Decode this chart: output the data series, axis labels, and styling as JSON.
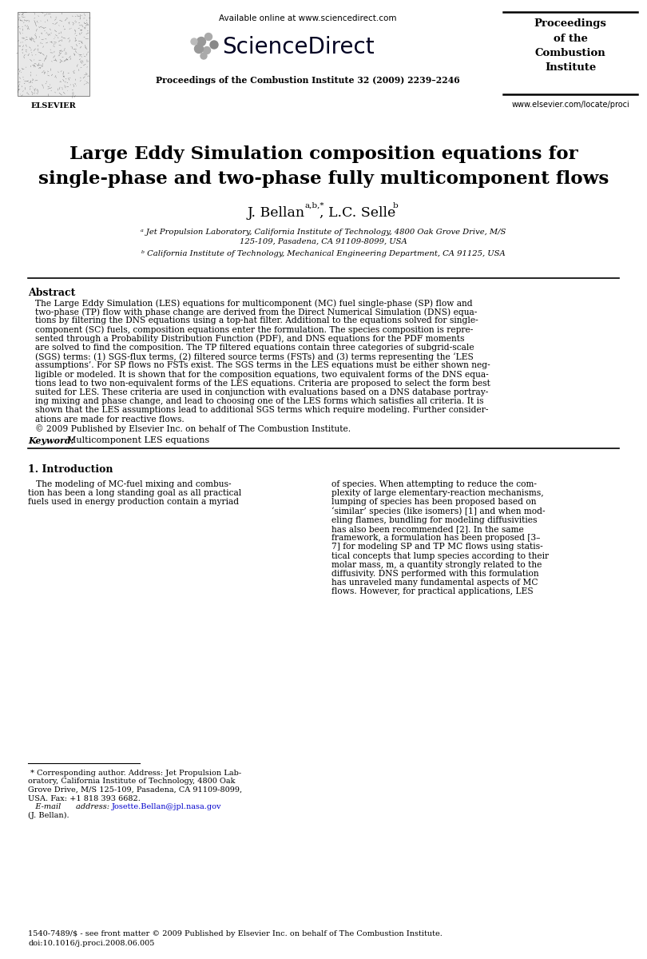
{
  "bg_color": "#ffffff",
  "header_available_online": "Available online at www.sciencedirect.com",
  "header_sciencedirect": "ScienceDirect",
  "header_journal": "Proceedings of the Combustion Institute 32 (2009) 2239–2246",
  "header_proceedings_title": "Proceedings\nof the\nCombustion\nInstitute",
  "header_website": "www.elsevier.com/locate/proci",
  "paper_title_line1": "Large Eddy Simulation composition equations for",
  "paper_title_line2": "single-phase and two-phase fully multicomponent flows",
  "affil_a": "ᵃ Jet Propulsion Laboratory, California Institute of Technology, 4800 Oak Grove Drive, M/S",
  "affil_a2": "125-109, Pasadena, CA 91109-8099, USA",
  "affil_b": "ᵇ California Institute of Technology, Mechanical Engineering Department, CA 91125, USA",
  "abstract_title": "Abstract",
  "abstract_lines": [
    "The Large Eddy Simulation (LES) equations for multicomponent (MC) fuel single-phase (SP) flow and",
    "two-phase (TP) flow with phase change are derived from the Direct Numerical Simulation (DNS) equa-",
    "tions by filtering the DNS equations using a top-hat filter. Additional to the equations solved for single-",
    "component (SC) fuels, composition equations enter the formulation. The species composition is repre-",
    "sented through a Probability Distribution Function (PDF), and DNS equations for the PDF moments",
    "are solved to find the composition. The TP filtered equations contain three categories of subgrid-scale",
    "(SGS) terms: (1) SGS-flux terms, (2) filtered source terms (FSTs) and (3) terms representing the ‘LES",
    "assumptions’. For SP flows no FSTs exist. The SGS terms in the LES equations must be either shown neg-",
    "ligible or modeled. It is shown that for the composition equations, two equivalent forms of the DNS equa-",
    "tions lead to two non-equivalent forms of the LES equations. Criteria are proposed to select the form best",
    "suited for LES. These criteria are used in conjunction with evaluations based on a DNS database portray-",
    "ing mixing and phase change, and lead to choosing one of the LES forms which satisfies all criteria. It is",
    "shown that the LES assumptions lead to additional SGS terms which require modeling. Further consider-",
    "ations are made for reactive flows.",
    "© 2009 Published by Elsevier Inc. on behalf of The Combustion Institute."
  ],
  "keyword_label": "Keyword:",
  "keyword_text": "Multicomponent LES equations",
  "section1_title": "1. Introduction",
  "intro_col1_lines": [
    "   The modeling of MC-fuel mixing and combus-",
    "tion has been a long standing goal as all practical",
    "fuels used in energy production contain a myriad"
  ],
  "intro_col2_lines": [
    "of species. When attempting to reduce the com-",
    "plexity of large elementary-reaction mechanisms,",
    "lumping of species has been proposed based on",
    "‘similar’ species (like isomers) [1] and when mod-",
    "eling flames, bundling for modeling diffusivities",
    "has also been recommended [2]. In the same",
    "framework, a formulation has been proposed [3–",
    "7] for modeling SP and TP MC flows using statis-",
    "tical concepts that lump species according to their",
    "molar mass, m, a quantity strongly related to the",
    "diffusivity. DNS performed with this formulation",
    "has unraveled many fundamental aspects of MC",
    "flows. However, for practical applications, LES"
  ],
  "footnote_lines": [
    " * Corresponding author. Address: Jet Propulsion Lab-",
    "oratory, California Institute of Technology, 4800 Oak",
    "Grove Drive, M/S 125-109, Pasadena, CA 91109-8099,",
    "USA. Fax: +1 818 393 6682."
  ],
  "footnote_email_label": "   E-mail      address:",
  "footnote_email": "Josette.Bellan@jpl.nasa.gov",
  "footnote_email_end": "(J. Bellan).",
  "footer_issn": "1540-7489/$ - see front matter © 2009 Published by Elsevier Inc. on behalf of The Combustion Institute.",
  "footer_doi": "doi:10.1016/j.proci.2008.06.005"
}
